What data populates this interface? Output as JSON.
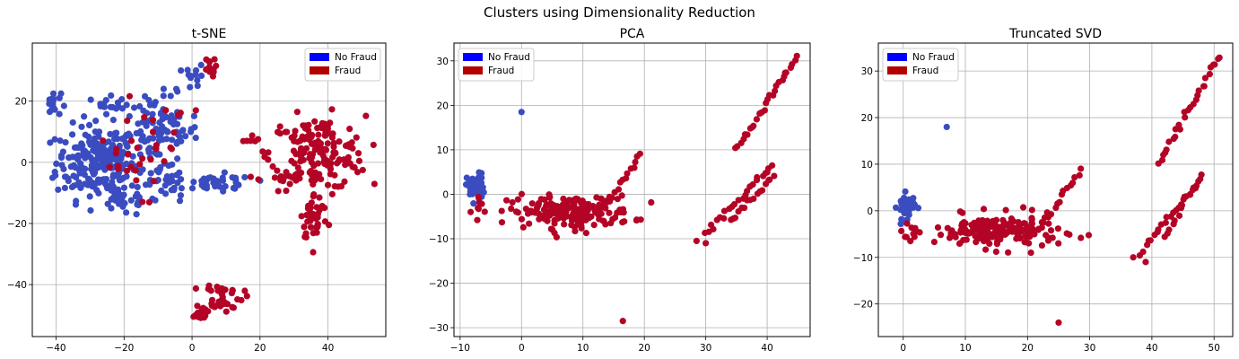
{
  "figure": {
    "suptitle": "Clusters using Dimensionality Reduction"
  },
  "colors": {
    "no_fraud_legend": "#0000ff",
    "fraud_legend": "#b30000",
    "no_fraud_points": "#3a4cc0",
    "fraud_points": "#b40426",
    "grid": "#b0b0b0"
  },
  "chart_data": [
    {
      "type": "scatter",
      "title": "t-SNE",
      "xlabel": "",
      "ylabel": "",
      "xlim": [
        -47,
        57
      ],
      "ylim": [
        -57,
        39
      ],
      "xticks": [
        -40,
        -20,
        0,
        20,
        40
      ],
      "yticks": [
        -40,
        -20,
        0,
        20
      ],
      "grid": true,
      "legend": {
        "placement": "top-right",
        "entries": [
          "No Fraud",
          "Fraud"
        ]
      },
      "clusters": [
        {
          "label": "No Fraud",
          "cx": -28,
          "cy": 0,
          "sx": 6,
          "sy": 6,
          "n": 220
        },
        {
          "label": "No Fraud",
          "cx": -41,
          "cy": 19,
          "sx": 1.2,
          "sy": 2,
          "n": 18
        },
        {
          "label": "No Fraud",
          "cx": -24,
          "cy": 20,
          "sx": 2,
          "sy": 2,
          "n": 15
        },
        {
          "label": "No Fraud",
          "cx": -10,
          "cy": 10,
          "sx": 6,
          "sy": 6,
          "n": 110
        },
        {
          "label": "No Fraud",
          "cx": -20,
          "cy": -12,
          "sx": 4,
          "sy": 3,
          "n": 30
        },
        {
          "label": "No Fraud",
          "cx": -8,
          "cy": -8,
          "sx": 3,
          "sy": 3,
          "n": 25
        },
        {
          "label": "No Fraud",
          "cx": 8,
          "cy": -7,
          "sx": 5,
          "sy": 1.5,
          "n": 40
        },
        {
          "label": "No Fraud",
          "cx": 1,
          "cy": 28,
          "sx": 1.5,
          "sy": 2,
          "n": 12
        },
        {
          "label": "Fraud",
          "cx": 37,
          "cy": 3,
          "sx": 7,
          "sy": 6,
          "n": 170
        },
        {
          "label": "Fraud",
          "cx": 36,
          "cy": -18,
          "sx": 2,
          "sy": 4,
          "n": 40
        },
        {
          "label": "Fraud",
          "cx": 26,
          "cy": -5,
          "sx": 3,
          "sy": 1,
          "n": 15
        },
        {
          "label": "Fraud",
          "cx": 9,
          "cy": -44,
          "sx": 3,
          "sy": 2.5,
          "n": 40
        },
        {
          "label": "Fraud",
          "cx": 2,
          "cy": -50,
          "sx": 1.5,
          "sy": 0.8,
          "n": 20
        },
        {
          "label": "Fraud",
          "cx": 5,
          "cy": 31,
          "sx": 1,
          "sy": 1.5,
          "n": 12
        },
        {
          "label": "Fraud",
          "cx": -20,
          "cy": -2,
          "sx": 5,
          "sy": 6,
          "n": 20
        },
        {
          "label": "Fraud",
          "cx": -10,
          "cy": 12,
          "sx": 5,
          "sy": 5,
          "n": 15
        },
        {
          "label": "Fraud",
          "cx": 18,
          "cy": 7,
          "sx": 1.5,
          "sy": 1,
          "n": 6
        }
      ]
    },
    {
      "type": "scatter",
      "title": "PCA",
      "xlabel": "",
      "ylabel": "",
      "xlim": [
        -11,
        47
      ],
      "ylim": [
        -32,
        34
      ],
      "xticks": [
        -10,
        0,
        10,
        20,
        30,
        40
      ],
      "yticks": [
        -30,
        -20,
        -10,
        0,
        10,
        20,
        30
      ],
      "grid": true,
      "legend": {
        "placement": "top-left",
        "entries": [
          "No Fraud",
          "Fraud"
        ]
      },
      "clusters": [
        {
          "label": "No Fraud",
          "cx": -7.5,
          "cy": 1.5,
          "sx": 0.7,
          "sy": 1.6,
          "n": 50
        },
        {
          "label": "Fraud",
          "cx": 8,
          "cy": -4,
          "sx": 5,
          "sy": 1.8,
          "n": 180
        },
        {
          "label": "Fraud",
          "cx": -6.5,
          "cy": -3,
          "sx": 0.8,
          "sy": 2,
          "n": 8
        }
      ],
      "points": [
        {
          "label": "No Fraud",
          "x": 0,
          "y": 18.5
        },
        {
          "label": "Fraud",
          "x": 16.5,
          "y": -28.5
        },
        {
          "label": "Fraud",
          "x": 28.5,
          "y": -10.5
        },
        {
          "label": "Fraud",
          "x": 30,
          "y": -11
        }
      ],
      "lines": [
        {
          "label": "Fraud",
          "x0": 35,
          "y0": 10,
          "x1": 45,
          "y1": 31,
          "n": 28
        },
        {
          "label": "Fraud",
          "x0": 30,
          "y0": -9,
          "x1": 41,
          "y1": 7,
          "n": 24
        },
        {
          "label": "Fraud",
          "x0": 34,
          "y0": -6,
          "x1": 41,
          "y1": 4,
          "n": 16
        },
        {
          "label": "Fraud",
          "x0": 14,
          "y0": -2,
          "x1": 19.5,
          "y1": 9,
          "n": 14
        }
      ]
    },
    {
      "type": "scatter",
      "title": "Truncated SVD",
      "xlabel": "",
      "ylabel": "",
      "xlim": [
        -4,
        53
      ],
      "ylim": [
        -27,
        36
      ],
      "xticks": [
        0,
        10,
        20,
        30,
        40,
        50
      ],
      "yticks": [
        -20,
        -10,
        0,
        10,
        20,
        30
      ],
      "grid": true,
      "legend": {
        "placement": "top-left",
        "entries": [
          "No Fraud",
          "Fraud"
        ]
      },
      "clusters": [
        {
          "label": "No Fraud",
          "cx": 0.5,
          "cy": 1,
          "sx": 0.7,
          "sy": 1.3,
          "n": 45
        },
        {
          "label": "Fraud",
          "cx": 15,
          "cy": -4.5,
          "sx": 5,
          "sy": 1.8,
          "n": 180
        },
        {
          "label": "Fraud",
          "cx": 1.5,
          "cy": -4,
          "sx": 0.8,
          "sy": 1.8,
          "n": 8
        }
      ],
      "points": [
        {
          "label": "No Fraud",
          "x": 7,
          "y": 18
        },
        {
          "label": "Fraud",
          "x": 25,
          "y": -24
        },
        {
          "label": "Fraud",
          "x": 37,
          "y": -10
        },
        {
          "label": "Fraud",
          "x": 39,
          "y": -11
        }
      ],
      "lines": [
        {
          "label": "Fraud",
          "x0": 41,
          "y0": 10,
          "x1": 51,
          "y1": 33.5,
          "n": 28
        },
        {
          "label": "Fraud",
          "x0": 38,
          "y0": -9,
          "x1": 47.5,
          "y1": 6,
          "n": 22
        },
        {
          "label": "Fraud",
          "x0": 42,
          "y0": -6,
          "x1": 48,
          "y1": 8,
          "n": 14
        },
        {
          "label": "Fraud",
          "x0": 23,
          "y0": -2,
          "x1": 28.5,
          "y1": 9,
          "n": 14
        }
      ]
    }
  ]
}
